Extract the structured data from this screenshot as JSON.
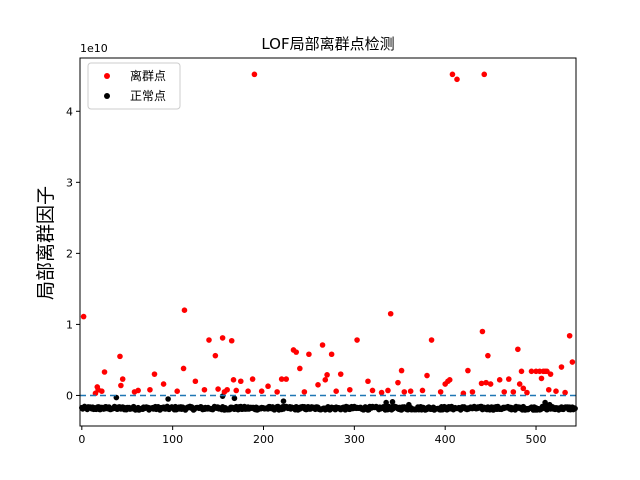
{
  "chart_data": {
    "type": "scatter",
    "title": "LOF局部离群点检测",
    "xlabel": "",
    "ylabel": "局部离群因子",
    "y_multiplier_label": "1e10",
    "xlim": [
      -2,
      544
    ],
    "ylim": [
      -0.43,
      4.75
    ],
    "xticks": [
      0,
      100,
      200,
      300,
      400,
      500
    ],
    "yticks": [
      0,
      1,
      2,
      3,
      4
    ],
    "threshold": {
      "y": 0,
      "style": "dashed",
      "color": "#1f77b4"
    },
    "legend": {
      "position": "top-left",
      "entries": [
        "离群点",
        "正常点"
      ]
    },
    "grid": false,
    "series": [
      {
        "name": "离群点",
        "color": "#ff0000",
        "points": [
          [
            2,
            1.11
          ],
          [
            15,
            0.03
          ],
          [
            17,
            0.12
          ],
          [
            18,
            0.08
          ],
          [
            22,
            0.06
          ],
          [
            25,
            0.33
          ],
          [
            42,
            0.55
          ],
          [
            43,
            0.14
          ],
          [
            45,
            0.23
          ],
          [
            58,
            0.05
          ],
          [
            62,
            0.07
          ],
          [
            75,
            0.08
          ],
          [
            80,
            0.3
          ],
          [
            90,
            0.16
          ],
          [
            105,
            0.06
          ],
          [
            112,
            0.38
          ],
          [
            113,
            1.2
          ],
          [
            125,
            0.2
          ],
          [
            135,
            0.08
          ],
          [
            140,
            0.78
          ],
          [
            147,
            0.56
          ],
          [
            150,
            0.09
          ],
          [
            155,
            0.81
          ],
          [
            157,
            0.05
          ],
          [
            160,
            0.08
          ],
          [
            165,
            0.77
          ],
          [
            167,
            0.22
          ],
          [
            170,
            0.07
          ],
          [
            175,
            0.2
          ],
          [
            183,
            0.06
          ],
          [
            190,
            4.52
          ],
          [
            188,
            0.23
          ],
          [
            198,
            0.06
          ],
          [
            205,
            0.13
          ],
          [
            215,
            0.05
          ],
          [
            220,
            0.23
          ],
          [
            225,
            0.23
          ],
          [
            233,
            0.64
          ],
          [
            236,
            0.61
          ],
          [
            240,
            0.38
          ],
          [
            245,
            0.05
          ],
          [
            250,
            0.58
          ],
          [
            260,
            0.15
          ],
          [
            265,
            0.71
          ],
          [
            268,
            0.22
          ],
          [
            270,
            0.29
          ],
          [
            275,
            0.58
          ],
          [
            280,
            0.06
          ],
          [
            285,
            0.3
          ],
          [
            295,
            0.08
          ],
          [
            303,
            0.78
          ],
          [
            315,
            0.2
          ],
          [
            320,
            0.07
          ],
          [
            330,
            0.04
          ],
          [
            337,
            0.07
          ],
          [
            340,
            1.15
          ],
          [
            348,
            0.18
          ],
          [
            352,
            0.35
          ],
          [
            355,
            0.05
          ],
          [
            362,
            0.06
          ],
          [
            375,
            0.07
          ],
          [
            380,
            0.28
          ],
          [
            385,
            0.78
          ],
          [
            395,
            0.05
          ],
          [
            400,
            0.16
          ],
          [
            403,
            0.2
          ],
          [
            405,
            0.22
          ],
          [
            408,
            4.52
          ],
          [
            413,
            4.45
          ],
          [
            420,
            0.03
          ],
          [
            425,
            0.35
          ],
          [
            430,
            0.05
          ],
          [
            440,
            0.17
          ],
          [
            441,
            0.9
          ],
          [
            443,
            4.52
          ],
          [
            445,
            0.18
          ],
          [
            447,
            0.56
          ],
          [
            450,
            0.16
          ],
          [
            460,
            0.22
          ],
          [
            465,
            0.05
          ],
          [
            470,
            0.23
          ],
          [
            475,
            0.05
          ],
          [
            480,
            0.65
          ],
          [
            482,
            0.16
          ],
          [
            484,
            0.34
          ],
          [
            486,
            0.1
          ],
          [
            490,
            0.04
          ],
          [
            495,
            0.34
          ],
          [
            500,
            0.34
          ],
          [
            504,
            0.34
          ],
          [
            506,
            0.24
          ],
          [
            508,
            0.34
          ],
          [
            510,
            0.34
          ],
          [
            512,
            0.34
          ],
          [
            514,
            0.08
          ],
          [
            516,
            0.3
          ],
          [
            522,
            0.06
          ],
          [
            528,
            0.4
          ],
          [
            532,
            0.04
          ],
          [
            537,
            0.84
          ],
          [
            540,
            0.47
          ]
        ]
      },
      {
        "name": "正常点",
        "color": "#000000",
        "baseline": -0.18,
        "x_range": [
          0,
          543
        ],
        "extra_points": [
          [
            38,
            -0.03
          ],
          [
            95,
            -0.05
          ],
          [
            155,
            -0.01
          ],
          [
            168,
            -0.04
          ],
          [
            222,
            -0.08
          ],
          [
            335,
            -0.1
          ],
          [
            342,
            -0.09
          ],
          [
            360,
            -0.13
          ],
          [
            510,
            -0.1
          ],
          [
            515,
            -0.13
          ]
        ]
      }
    ]
  }
}
